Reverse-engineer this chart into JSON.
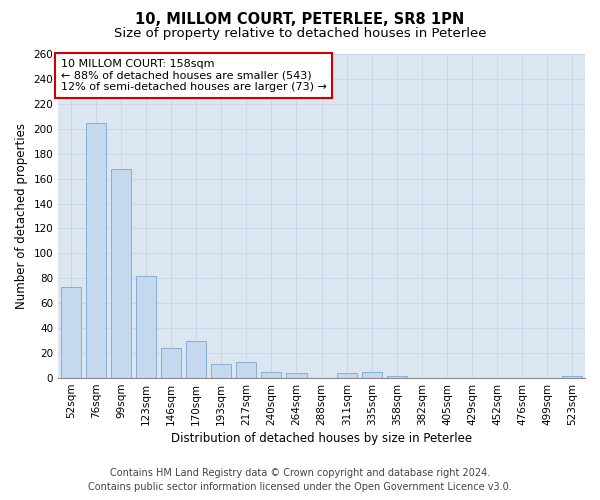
{
  "title_line1": "10, MILLOM COURT, PETERLEE, SR8 1PN",
  "title_line2": "Size of property relative to detached houses in Peterlee",
  "xlabel": "Distribution of detached houses by size in Peterlee",
  "ylabel": "Number of detached properties",
  "categories": [
    "52sqm",
    "76sqm",
    "99sqm",
    "123sqm",
    "146sqm",
    "170sqm",
    "193sqm",
    "217sqm",
    "240sqm",
    "264sqm",
    "288sqm",
    "311sqm",
    "335sqm",
    "358sqm",
    "382sqm",
    "405sqm",
    "429sqm",
    "452sqm",
    "476sqm",
    "499sqm",
    "523sqm"
  ],
  "values": [
    73,
    205,
    168,
    82,
    24,
    30,
    11,
    13,
    5,
    4,
    0,
    4,
    5,
    2,
    0,
    0,
    0,
    0,
    0,
    0,
    2
  ],
  "bar_color": "#c5d9ee",
  "bar_edge_color": "#7aa6d4",
  "annotation_text": "10 MILLOM COURT: 158sqm\n← 88% of detached houses are smaller (543)\n12% of semi-detached houses are larger (73) →",
  "annotation_box_color": "white",
  "annotation_box_edge": "#cc0000",
  "ylim": [
    0,
    260
  ],
  "yticks": [
    0,
    20,
    40,
    60,
    80,
    100,
    120,
    140,
    160,
    180,
    200,
    220,
    240,
    260
  ],
  "grid_color": "#c8d8e8",
  "background_color": "#dce6f1",
  "footer_line1": "Contains HM Land Registry data © Crown copyright and database right 2024.",
  "footer_line2": "Contains public sector information licensed under the Open Government Licence v3.0.",
  "title_fontsize": 10.5,
  "subtitle_fontsize": 9.5,
  "axis_label_fontsize": 8.5,
  "tick_fontsize": 7.5,
  "annotation_fontsize": 8,
  "footer_fontsize": 7
}
